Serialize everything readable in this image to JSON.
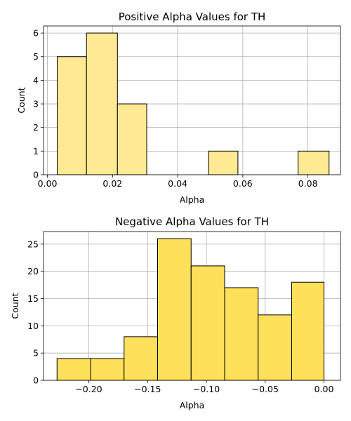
{
  "chart_data": [
    {
      "type": "bar",
      "title": "Positive Alpha Values for TH",
      "xlabel": "Alpha",
      "ylabel": "Count",
      "bar_color": "#ffe992",
      "xlim": [
        -0.0012,
        0.09
      ],
      "ylim": [
        0,
        6.3
      ],
      "xticks": [
        0.0,
        0.02,
        0.04,
        0.06,
        0.08
      ],
      "xtick_labels": [
        "0.00",
        "0.02",
        "0.04",
        "0.06",
        "0.08"
      ],
      "yticks": [
        0,
        1,
        2,
        3,
        4,
        5,
        6
      ],
      "ytick_labels": [
        "0",
        "1",
        "2",
        "3",
        "4",
        "5",
        "6"
      ],
      "grid": true,
      "bins": [
        {
          "x0": 0.003,
          "x1": 0.012,
          "count": 5
        },
        {
          "x0": 0.012,
          "x1": 0.0215,
          "count": 6
        },
        {
          "x0": 0.0215,
          "x1": 0.0305,
          "count": 3
        },
        {
          "x0": 0.0305,
          "x1": 0.04,
          "count": 0
        },
        {
          "x0": 0.04,
          "x1": 0.0495,
          "count": 0
        },
        {
          "x0": 0.0495,
          "x1": 0.0585,
          "count": 1
        },
        {
          "x0": 0.0585,
          "x1": 0.068,
          "count": 0
        },
        {
          "x0": 0.068,
          "x1": 0.077,
          "count": 0
        },
        {
          "x0": 0.077,
          "x1": 0.0865,
          "count": 1
        }
      ]
    },
    {
      "type": "bar",
      "title": "Negative Alpha Values for TH",
      "xlabel": "Alpha",
      "ylabel": "Count",
      "bar_color": "#ffe05a",
      "xlim": [
        -0.2385,
        0.014
      ],
      "ylim": [
        0,
        27.3
      ],
      "xticks": [
        -0.2,
        -0.15,
        -0.1,
        -0.05,
        0.0
      ],
      "xtick_labels": [
        "−0.20",
        "−0.15",
        "−0.10",
        "−0.05",
        "0.00"
      ],
      "yticks": [
        0,
        5,
        10,
        15,
        20,
        25
      ],
      "ytick_labels": [
        "0",
        "5",
        "10",
        "15",
        "20",
        "25"
      ],
      "grid": true,
      "bins": [
        {
          "x0": -0.227,
          "x1": -0.1985,
          "count": 4
        },
        {
          "x0": -0.1985,
          "x1": -0.17,
          "count": 4
        },
        {
          "x0": -0.17,
          "x1": -0.1415,
          "count": 8
        },
        {
          "x0": -0.1415,
          "x1": -0.113,
          "count": 26
        },
        {
          "x0": -0.113,
          "x1": -0.0845,
          "count": 21
        },
        {
          "x0": -0.0845,
          "x1": -0.056,
          "count": 17
        },
        {
          "x0": -0.056,
          "x1": -0.0275,
          "count": 12
        },
        {
          "x0": -0.0275,
          "x1": 0.0,
          "count": 18
        }
      ]
    }
  ]
}
